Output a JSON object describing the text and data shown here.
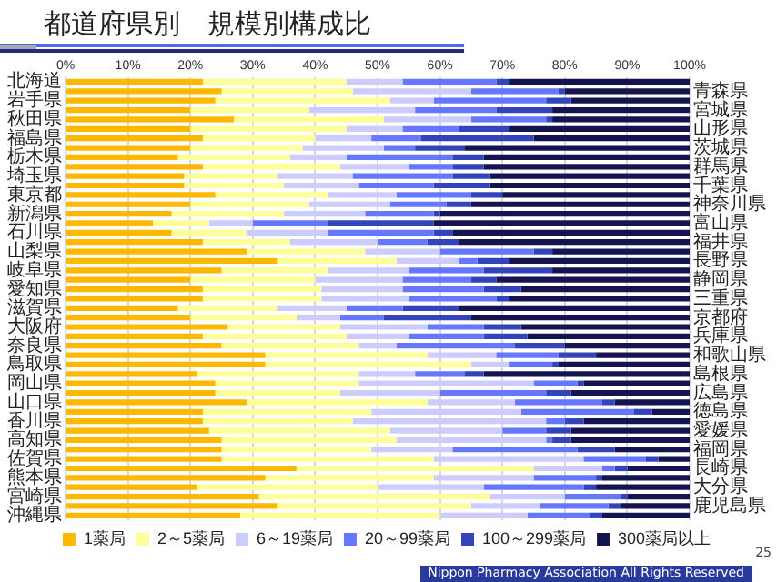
{
  "chart_data": {
    "type": "bar",
    "orientation": "horizontal",
    "stacked": true,
    "title": "都道府県別　規模別構成比",
    "categories": [
      "北海道",
      "青森県",
      "岩手県",
      "宮城県",
      "秋田県",
      "山形県",
      "福島県",
      "茨城県",
      "栃木県",
      "群馬県",
      "埼玉県",
      "千葉県",
      "東京都",
      "神奈川県",
      "新潟県",
      "富山県",
      "石川県",
      "福井県",
      "山梨県",
      "長野県",
      "岐阜県",
      "静岡県",
      "愛知県",
      "三重県",
      "滋賀県",
      "京都府",
      "大阪府",
      "兵庫県",
      "奈良県",
      "和歌山県",
      "鳥取県",
      "島根県",
      "岡山県",
      "広島県",
      "山口県",
      "徳島県",
      "香川県",
      "愛媛県",
      "高知県",
      "福岡県",
      "佐賀県",
      "長崎県",
      "熊本県",
      "大分県",
      "宮崎県",
      "鹿児島県",
      "沖縄県"
    ],
    "series": [
      {
        "name": "1薬局",
        "color": "#ffb800",
        "values": [
          22,
          25,
          24,
          20,
          27,
          20,
          22,
          20,
          18,
          22,
          19,
          19,
          24,
          20,
          17,
          14,
          17,
          22,
          29,
          34,
          25,
          20,
          22,
          22,
          18,
          20,
          26,
          22,
          25,
          32,
          32,
          21,
          24,
          24,
          29,
          22,
          22,
          23,
          25,
          25,
          25,
          37,
          32,
          21,
          31,
          34,
          28
        ]
      },
      {
        "name": "2～5薬局",
        "color": "#ffff99",
        "values": [
          23,
          21,
          28,
          19,
          24,
          25,
          18,
          18,
          18,
          22,
          15,
          16,
          18,
          19,
          18,
          9,
          12,
          14,
          19,
          19,
          17,
          20,
          19,
          19,
          16,
          17,
          18,
          23,
          22,
          26,
          33,
          26,
          23,
          20,
          29,
          27,
          24,
          29,
          28,
          24,
          34,
          38,
          27,
          29,
          37,
          31,
          32
        ]
      },
      {
        "name": "6～19薬局",
        "color": "#ccccff",
        "values": [
          9,
          19,
          7,
          17,
          14,
          9,
          9,
          13,
          9,
          11,
          12,
          12,
          11,
          13,
          13,
          7,
          13,
          14,
          12,
          10,
          13,
          14,
          13,
          14,
          11,
          7,
          14,
          10,
          6,
          11,
          6,
          9,
          28,
          16,
          14,
          24,
          31,
          18,
          24,
          13,
          24,
          11,
          16,
          17,
          12,
          11,
          14
        ]
      },
      {
        "name": "20～99薬局",
        "color": "#6677ff",
        "values": [
          15,
          14,
          18,
          13,
          12,
          9,
          8,
          5,
          17,
          7,
          16,
          12,
          12,
          9,
          11,
          12,
          17,
          8,
          15,
          3,
          12,
          11,
          13,
          14,
          9,
          7,
          9,
          12,
          19,
          10,
          7,
          8,
          7,
          17,
          14,
          18,
          3,
          7,
          1,
          20,
          10,
          2,
          10,
          16,
          9,
          11,
          10
        ]
      },
      {
        "name": "100～299薬局",
        "color": "#3344bb",
        "values": [
          2,
          1,
          4,
          9,
          1,
          8,
          18,
          8,
          5,
          5,
          6,
          9,
          5,
          4,
          1,
          17,
          3,
          5,
          3,
          5,
          11,
          4,
          6,
          2,
          9,
          14,
          6,
          7,
          8,
          6,
          1,
          3,
          1,
          4,
          2,
          3,
          3,
          4,
          3,
          6,
          2,
          2,
          1,
          2,
          1,
          2,
          2
        ]
      },
      {
        "name": "300薬局以上",
        "color": "#141450",
        "values": [
          29,
          20,
          19,
          22,
          22,
          29,
          25,
          36,
          33,
          33,
          32,
          32,
          30,
          35,
          40,
          41,
          38,
          37,
          22,
          29,
          22,
          31,
          27,
          29,
          37,
          35,
          27,
          26,
          20,
          15,
          21,
          33,
          17,
          19,
          12,
          6,
          17,
          19,
          19,
          12,
          5,
          10,
          14,
          15,
          10,
          11,
          14
        ]
      }
    ],
    "xlim": [
      0,
      100
    ],
    "xticks": [
      {
        "value": 0,
        "label": "0%"
      },
      {
        "value": 10,
        "label": "10%"
      },
      {
        "value": 20,
        "label": "20%"
      },
      {
        "value": 30,
        "label": "30%"
      },
      {
        "value": 40,
        "label": "40%"
      },
      {
        "value": 50,
        "label": "50%"
      },
      {
        "value": 60,
        "label": "60%"
      },
      {
        "value": 70,
        "label": "70%"
      },
      {
        "value": 80,
        "label": "80%"
      },
      {
        "value": 90,
        "label": "90%"
      },
      {
        "value": 100,
        "label": "100%"
      }
    ],
    "grid": "x",
    "legend": "bottom",
    "annotations": [
      "Nippon Pharmacy Association All Rights Reserved",
      "25"
    ]
  }
}
